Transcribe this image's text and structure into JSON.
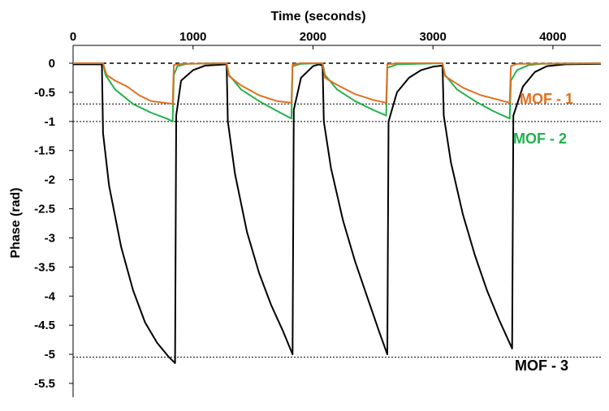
{
  "chart_data": {
    "type": "line",
    "title": "",
    "xlabel": "Time (seconds)",
    "ylabel": "Phase (rad)",
    "xlim": [
      0,
      4400
    ],
    "ylim": [
      -5.5,
      0
    ],
    "xticks": [
      "0",
      "1000",
      "2000",
      "3000",
      "4000"
    ],
    "xtick_values": [
      0,
      1000,
      2000,
      3000,
      4000
    ],
    "yticks": [
      "0",
      "-0.5",
      "-1",
      "-1.5",
      "-2",
      "-2.5",
      "-3",
      "-3.5",
      "-4",
      "-4.5",
      "-5",
      "-5.5"
    ],
    "ytick_values": [
      0,
      -0.5,
      -1,
      -1.5,
      -2,
      -2.5,
      -3,
      -3.5,
      -4,
      -4.5,
      -5,
      -5.5
    ],
    "x_axis_position": "top",
    "grid": false,
    "reference_lines": [
      0,
      -0.7,
      -1.0,
      -5.05
    ],
    "series": [
      {
        "name": "MOF - 3",
        "color": "#000000",
        "points": [
          [
            0,
            -0.02
          ],
          [
            240,
            -0.02
          ],
          [
            250,
            -1.2
          ],
          [
            300,
            -2.1
          ],
          [
            400,
            -3.15
          ],
          [
            500,
            -3.9
          ],
          [
            600,
            -4.45
          ],
          [
            700,
            -4.8
          ],
          [
            800,
            -5.05
          ],
          [
            850,
            -5.15
          ],
          [
            860,
            -0.9
          ],
          [
            900,
            -0.3
          ],
          [
            1000,
            -0.12
          ],
          [
            1100,
            -0.04
          ],
          [
            1280,
            -0.02
          ],
          [
            1290,
            -1.0
          ],
          [
            1350,
            -1.9
          ],
          [
            1450,
            -2.9
          ],
          [
            1550,
            -3.6
          ],
          [
            1650,
            -4.15
          ],
          [
            1750,
            -4.6
          ],
          [
            1830,
            -5.0
          ],
          [
            1840,
            -0.8
          ],
          [
            1900,
            -0.25
          ],
          [
            2000,
            -0.05
          ],
          [
            2050,
            -0.02
          ],
          [
            2080,
            -0.04
          ],
          [
            2090,
            -1.0
          ],
          [
            2150,
            -1.8
          ],
          [
            2250,
            -2.7
          ],
          [
            2350,
            -3.4
          ],
          [
            2450,
            -4.0
          ],
          [
            2550,
            -4.6
          ],
          [
            2620,
            -5.0
          ],
          [
            2630,
            -1.0
          ],
          [
            2700,
            -0.5
          ],
          [
            2800,
            -0.25
          ],
          [
            2900,
            -0.12
          ],
          [
            3000,
            -0.06
          ],
          [
            3080,
            -0.04
          ],
          [
            3090,
            -0.9
          ],
          [
            3150,
            -1.7
          ],
          [
            3250,
            -2.6
          ],
          [
            3350,
            -3.3
          ],
          [
            3450,
            -3.9
          ],
          [
            3550,
            -4.4
          ],
          [
            3660,
            -4.9
          ],
          [
            3670,
            -0.9
          ],
          [
            3750,
            -0.4
          ],
          [
            3850,
            -0.15
          ],
          [
            3950,
            -0.05
          ],
          [
            4100,
            -0.02
          ],
          [
            4400,
            -0.01
          ]
        ]
      },
      {
        "name": "MOF - 2",
        "color": "#22b14c",
        "points": [
          [
            0,
            0
          ],
          [
            250,
            0
          ],
          [
            270,
            -0.2
          ],
          [
            350,
            -0.45
          ],
          [
            500,
            -0.7
          ],
          [
            650,
            -0.85
          ],
          [
            780,
            -0.95
          ],
          [
            830,
            -1.0
          ],
          [
            840,
            -0.2
          ],
          [
            870,
            -0.05
          ],
          [
            950,
            -0.01
          ],
          [
            1280,
            0
          ],
          [
            1300,
            -0.2
          ],
          [
            1400,
            -0.45
          ],
          [
            1550,
            -0.65
          ],
          [
            1700,
            -0.82
          ],
          [
            1820,
            -0.95
          ],
          [
            1830,
            -0.05
          ],
          [
            1900,
            -0.01
          ],
          [
            2080,
            0
          ],
          [
            2100,
            -0.2
          ],
          [
            2200,
            -0.45
          ],
          [
            2350,
            -0.65
          ],
          [
            2500,
            -0.8
          ],
          [
            2610,
            -0.9
          ],
          [
            2620,
            -0.08
          ],
          [
            2700,
            -0.02
          ],
          [
            3080,
            0
          ],
          [
            3100,
            -0.2
          ],
          [
            3200,
            -0.45
          ],
          [
            3350,
            -0.65
          ],
          [
            3500,
            -0.82
          ],
          [
            3640,
            -0.95
          ],
          [
            3650,
            -0.3
          ],
          [
            3700,
            -0.12
          ],
          [
            3800,
            -0.03
          ],
          [
            3900,
            -0.01
          ],
          [
            4400,
            0
          ]
        ]
      },
      {
        "name": "MOF - 1",
        "color": "#e07020",
        "points": [
          [
            0,
            0
          ],
          [
            250,
            0
          ],
          [
            280,
            -0.2
          ],
          [
            350,
            -0.3
          ],
          [
            450,
            -0.4
          ],
          [
            550,
            -0.55
          ],
          [
            650,
            -0.65
          ],
          [
            760,
            -0.68
          ],
          [
            830,
            -0.7
          ],
          [
            840,
            -0.03
          ],
          [
            900,
            -0.01
          ],
          [
            1280,
            0
          ],
          [
            1300,
            -0.22
          ],
          [
            1400,
            -0.38
          ],
          [
            1550,
            -0.55
          ],
          [
            1700,
            -0.65
          ],
          [
            1820,
            -0.68
          ],
          [
            1830,
            -0.02
          ],
          [
            1900,
            0
          ],
          [
            2080,
            0
          ],
          [
            2100,
            -0.25
          ],
          [
            2200,
            -0.37
          ],
          [
            2350,
            -0.53
          ],
          [
            2500,
            -0.63
          ],
          [
            2610,
            -0.68
          ],
          [
            2620,
            -0.02
          ],
          [
            2700,
            0
          ],
          [
            3080,
            0
          ],
          [
            3100,
            -0.22
          ],
          [
            3250,
            -0.42
          ],
          [
            3400,
            -0.55
          ],
          [
            3550,
            -0.63
          ],
          [
            3640,
            -0.68
          ],
          [
            3650,
            -0.05
          ],
          [
            3700,
            -0.01
          ],
          [
            4400,
            0
          ]
        ]
      }
    ]
  }
}
